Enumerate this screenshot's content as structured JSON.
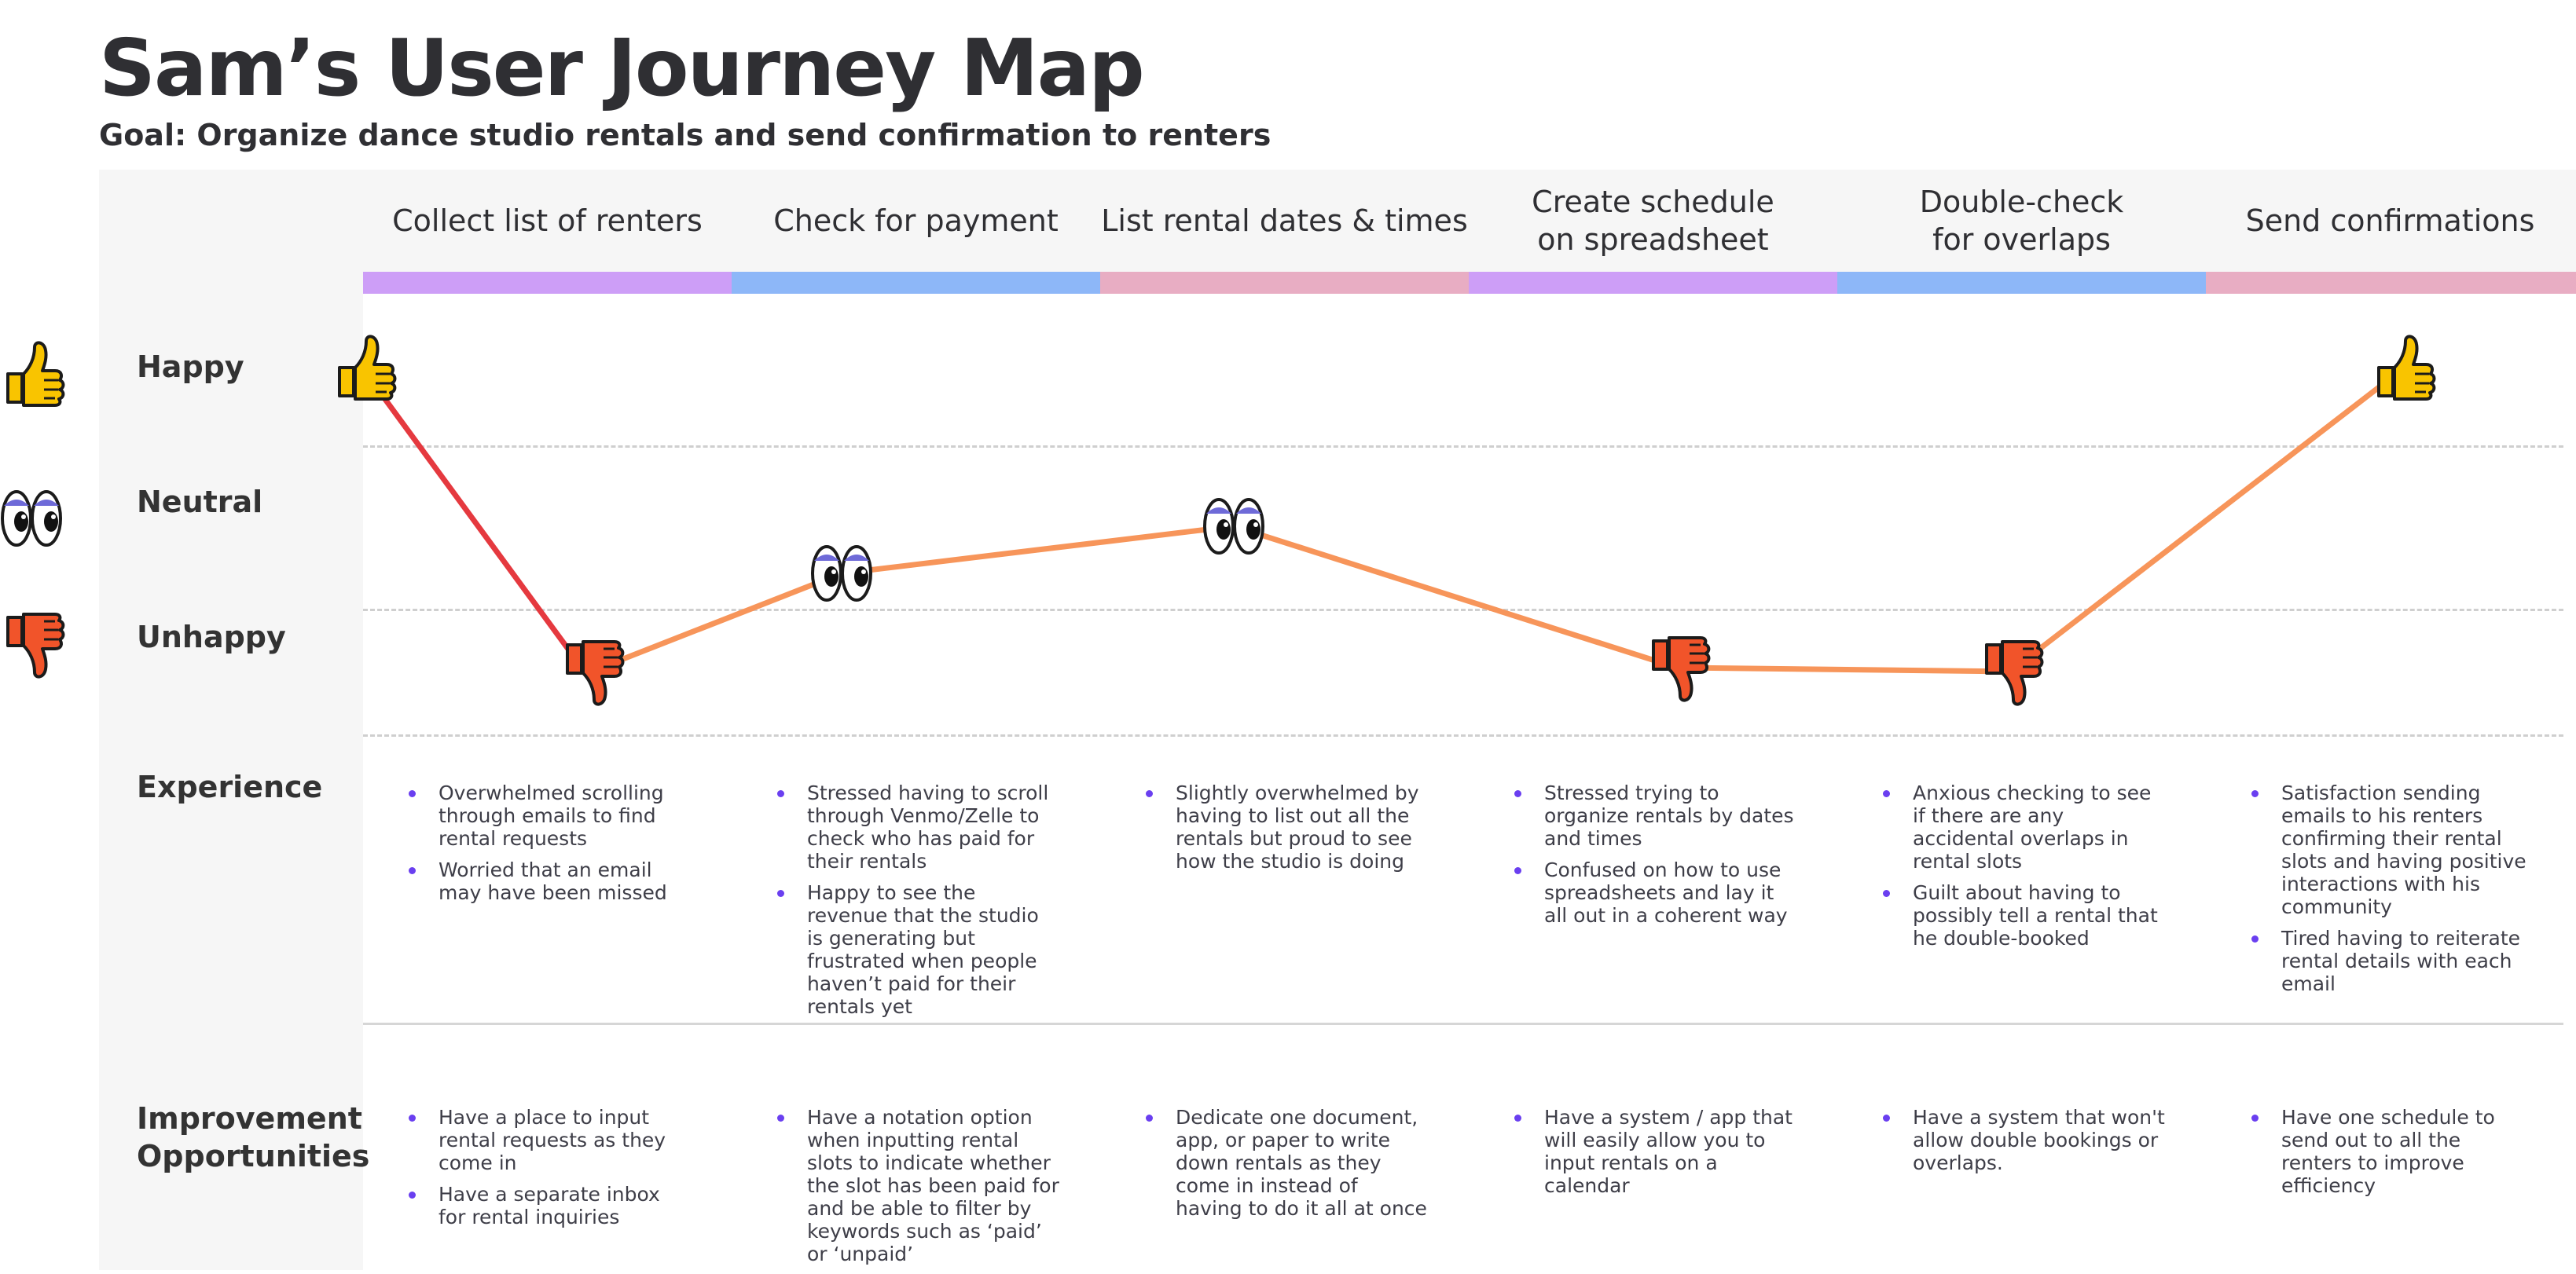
{
  "title": "Sam’s User Journey Map",
  "subtitle": "Goal: Organize dance studio rentals and send confirmation to renters",
  "stages": [
    {
      "label": "Collect list of renters",
      "color": "#cd9ef7"
    },
    {
      "label": "Check for payment",
      "color": "#8db7f8"
    },
    {
      "label": "List rental dates & times",
      "color": "#e8adc3"
    },
    {
      "label": "Create schedule\non spreadsheet",
      "color": "#cd9ef7"
    },
    {
      "label": "Double-check\nfor overlaps",
      "color": "#8db7f8"
    },
    {
      "label": "Send confirmations",
      "color": "#e8adc3"
    }
  ],
  "rows": {
    "happy": "Happy",
    "neutral": "Neutral",
    "unhappy": "Unhappy",
    "experience": "Experience",
    "improvement": "Improvement\nOpportunities"
  },
  "legend_icons": [
    "thumbs-up-icon",
    "eyes-icon",
    "thumbs-down-icon"
  ],
  "emotion_points": [
    {
      "stage": 0,
      "emotion": "happy",
      "icon": "thumbs-up-icon"
    },
    {
      "stage": 0,
      "emotion": "unhappy",
      "icon": "thumbs-down-icon"
    },
    {
      "stage": 1,
      "emotion": "neutral",
      "icon": "eyes-icon"
    },
    {
      "stage": 2,
      "emotion": "neutral",
      "icon": "eyes-icon"
    },
    {
      "stage": 3,
      "emotion": "unhappy",
      "icon": "thumbs-down-icon"
    },
    {
      "stage": 4,
      "emotion": "unhappy",
      "icon": "thumbs-down-icon"
    },
    {
      "stage": 5,
      "emotion": "happy",
      "icon": "thumbs-up-icon"
    }
  ],
  "line_colors": {
    "drop": "#e5393f",
    "journey": "#f7955a"
  },
  "icon_colors": {
    "thumbs_up": "#f9c400",
    "thumbs_down": "#f1542a",
    "eyes_iris": "#6e6ad8"
  },
  "experience": [
    [
      "Overwhelmed scrolling through emails to find rental requests",
      "Worried that an email may have been missed"
    ],
    [
      "Stressed having to scroll through Venmo/Zelle to check who has paid for their rentals",
      "Happy to see the revenue that the studio is generating but frustrated when people haven’t paid for their rentals yet"
    ],
    [
      "Slightly overwhelmed by having to list out all the rentals but proud to see how the studio is doing"
    ],
    [
      "Stressed trying to organize rentals by dates and times",
      "Confused on how to use spreadsheets and lay it all out in a coherent way"
    ],
    [
      "Anxious checking to see if there are any accidental overlaps in rental slots",
      "Guilt about having to possibly tell a rental that he double-booked"
    ],
    [
      "Satisfaction sending emails to his renters confirming their rental slots and having positive interactions with his community",
      "Tired having to reiterate rental details with each email"
    ]
  ],
  "improvements": [
    [
      "Have a place to input rental requests as they come in",
      "Have a separate inbox for rental inquiries"
    ],
    [
      "Have a notation option when inputting rental slots to indicate whether the slot has been paid for and be able to filter by keywords such as ‘paid’ or ‘unpaid’"
    ],
    [
      "Dedicate one document, app, or paper to write down rentals as they come in instead of having to do it all at once"
    ],
    [
      "Have a system / app that will easily allow you to input rentals on a calendar"
    ],
    [
      "Have a system that won't allow double bookings or overlaps."
    ],
    [
      "Have one schedule to send out to all the renters to improve efficiency"
    ]
  ]
}
